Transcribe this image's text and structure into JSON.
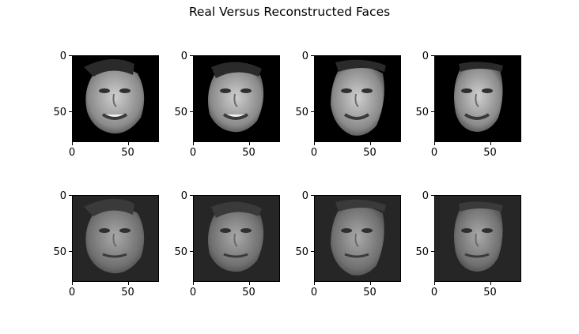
{
  "figure": {
    "title": "Real Versus Reconstructed Faces"
  },
  "axes": {
    "x_ticks": [
      "0",
      "50"
    ],
    "y_ticks": [
      "0",
      "50"
    ]
  },
  "panels": [
    {
      "row": "real",
      "face": "real-face-1"
    },
    {
      "row": "real",
      "face": "real-face-2"
    },
    {
      "row": "real",
      "face": "real-face-3"
    },
    {
      "row": "real",
      "face": "real-face-4"
    },
    {
      "row": "reconstructed",
      "face": "reconstructed-face-1"
    },
    {
      "row": "reconstructed",
      "face": "reconstructed-face-2"
    },
    {
      "row": "reconstructed",
      "face": "reconstructed-face-3"
    },
    {
      "row": "reconstructed",
      "face": "reconstructed-face-4"
    }
  ],
  "colors": {
    "real_background": "#000000",
    "reconstructed_background": "#262626"
  }
}
